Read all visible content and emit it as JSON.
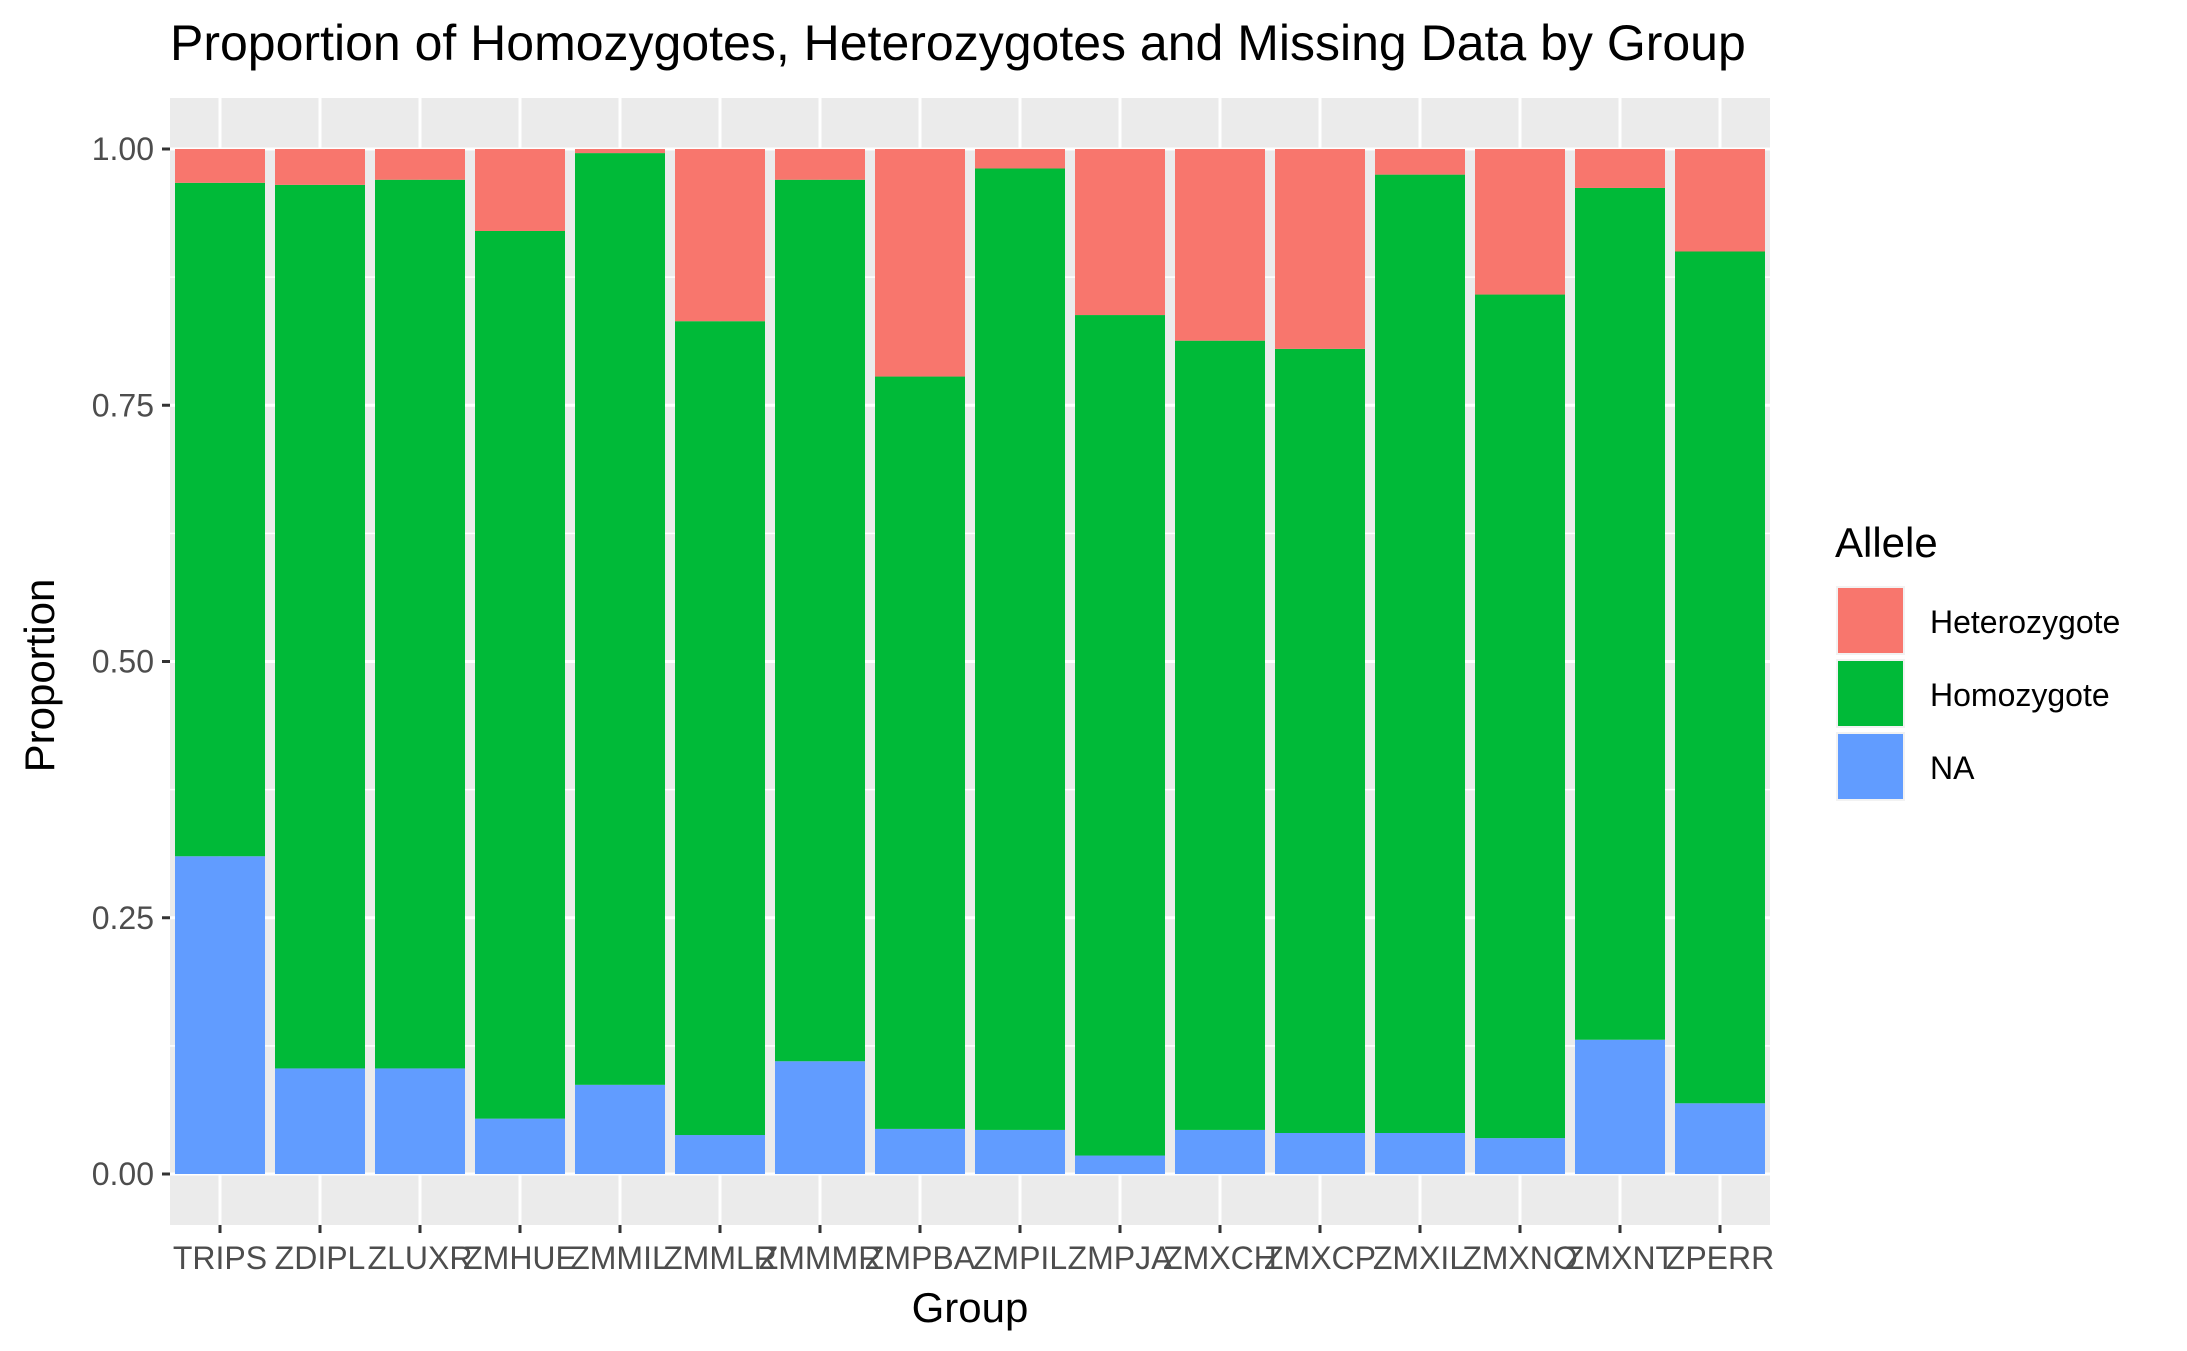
{
  "chart_data": {
    "type": "bar",
    "stacked": true,
    "title": "Proportion of Homozygotes, Heterozygotes and Missing Data by Group",
    "xlabel": "Group",
    "ylabel": "Proportion",
    "ylim": [
      0,
      1
    ],
    "yticks": [
      "0.00",
      "0.25",
      "0.50",
      "0.75",
      "1.00"
    ],
    "grid": true,
    "panel_background": "#ebebeb",
    "grid_color": "#ffffff",
    "legend": {
      "title": "Allele",
      "position": "right"
    },
    "categories": [
      "TRIPS",
      "ZDIPL",
      "ZLUXR",
      "ZMHUE",
      "ZMMIL",
      "ZMMLR",
      "ZMMMR",
      "ZMPBA",
      "ZMPIL",
      "ZMPJA",
      "ZMXCH",
      "ZMXCP",
      "ZMXIL",
      "ZMXNO",
      "ZMXNT",
      "ZPERR"
    ],
    "series": [
      {
        "name": "Heterozygote",
        "color": "#F8766D",
        "values": [
          0.033,
          0.035,
          0.03,
          0.08,
          0.004,
          0.168,
          0.03,
          0.222,
          0.019,
          0.162,
          0.187,
          0.195,
          0.025,
          0.142,
          0.038,
          0.1
        ]
      },
      {
        "name": "Homozygote",
        "color": "#00BA38",
        "values": [
          0.657,
          0.862,
          0.867,
          0.866,
          0.909,
          0.794,
          0.86,
          0.734,
          0.938,
          0.82,
          0.77,
          0.765,
          0.935,
          0.823,
          0.831,
          0.831
        ]
      },
      {
        "name": "NA",
        "color": "#619CFF",
        "values": [
          0.31,
          0.103,
          0.103,
          0.054,
          0.087,
          0.038,
          0.11,
          0.044,
          0.043,
          0.018,
          0.043,
          0.04,
          0.04,
          0.035,
          0.131,
          0.069
        ]
      }
    ]
  }
}
